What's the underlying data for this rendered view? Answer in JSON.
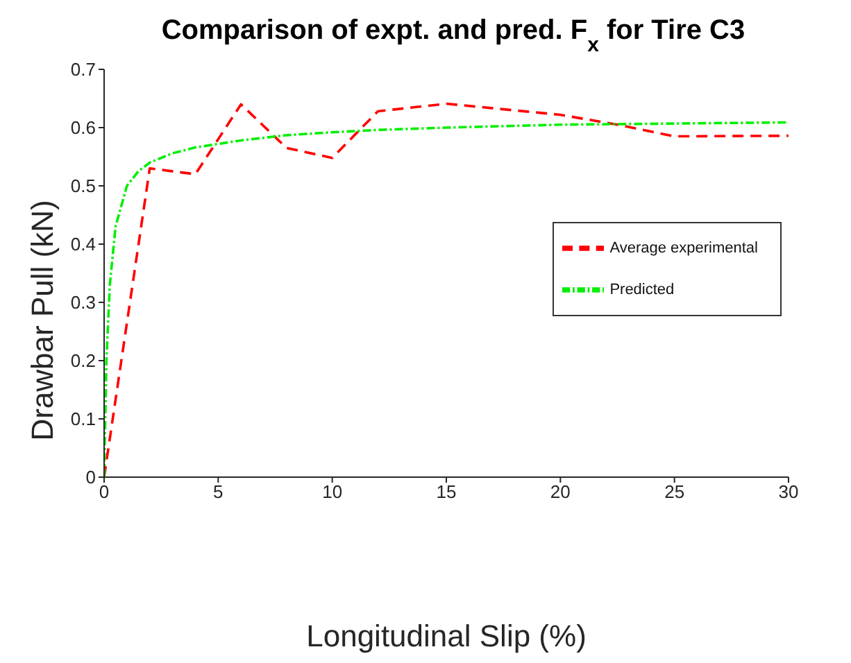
{
  "chart_data": {
    "type": "line",
    "title": "Comparison of expt. and pred. F$_{x}$ for Tire C3",
    "xlabel": "Longitudinal Slip (%)",
    "ylabel": "Drawbar Pull (kN)",
    "xlim": [
      0,
      30
    ],
    "xticks": [
      0,
      5,
      10,
      15,
      20,
      25,
      30
    ],
    "ylim": [
      0,
      0.7
    ],
    "yticks": [
      0,
      0.1,
      0.2,
      0.3,
      0.4,
      0.5,
      0.6,
      0.7
    ],
    "grid": false,
    "legend": "right",
    "marker": "none",
    "series": [
      {
        "name": "Average experimental",
        "color": "#ff0000",
        "line_style": "dashed",
        "x": [
          0,
          2,
          4,
          6,
          8,
          10,
          12,
          15,
          20,
          22.5,
          25,
          30
        ],
        "values": [
          0,
          0.53,
          0.52,
          0.64,
          0.565,
          0.548,
          0.628,
          0.641,
          0.622,
          0.605,
          0.585,
          0.586
        ]
      },
      {
        "name": "Predicted",
        "color": "#00ee00",
        "line_style": "dotted",
        "x": [
          0,
          0.1,
          0.25,
          0.5,
          1,
          1.5,
          2,
          3,
          4,
          5,
          6,
          8,
          10,
          12,
          15,
          20,
          25,
          30
        ],
        "values": [
          0,
          0.2,
          0.33,
          0.43,
          0.5,
          0.525,
          0.54,
          0.556,
          0.566,
          0.572,
          0.578,
          0.587,
          0.592,
          0.596,
          0.6,
          0.605,
          0.607,
          0.609
        ]
      }
    ]
  }
}
